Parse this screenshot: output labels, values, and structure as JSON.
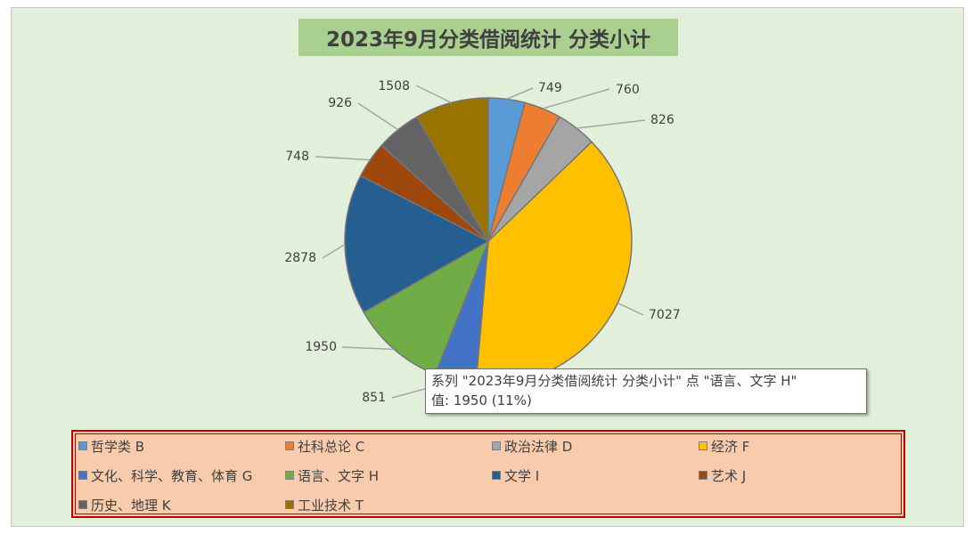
{
  "chart_data": {
    "type": "pie",
    "title": "2023年9月分类借阅统计 分类小计",
    "categories": [
      "哲学类 B",
      "社科总论 C",
      "政治法律 D",
      "经济 F",
      "文化、科学、教育、体育 G",
      "语言、文字 H",
      "文学 I",
      "艺术 J",
      "历史、地理 K",
      "工业技术 T"
    ],
    "pie_order": [
      "哲学类 B",
      "社科总论 C",
      "政治法律 D",
      "经济 F",
      "文学 I",
      "语言、文字 H",
      "文化、科学、教育、体育 G",
      "艺术 J",
      "历史、地理 K",
      "工业技术 T"
    ],
    "pie_values": [
      749,
      760,
      826,
      7027,
      851,
      1950,
      2878,
      748,
      926,
      1508
    ],
    "pie_colors": [
      "#5b9bd5",
      "#ed7d31",
      "#a5a5a5",
      "#ffc000",
      "#4472c4",
      "#70ad47",
      "#255e91",
      "#9e480e",
      "#636363",
      "#997300"
    ],
    "legend_colors": [
      "#5b9bd5",
      "#ed7d31",
      "#a5a5a5",
      "#ffc000",
      "#4472c4",
      "#70ad47",
      "#255e91",
      "#9e480e",
      "#636363",
      "#997300"
    ],
    "data_labels": [
      "749",
      "760",
      "826",
      "7027",
      "851",
      "1950",
      "2878",
      "748",
      "926",
      "1508"
    ],
    "legend_position": "bottom",
    "start_angle_deg": 0,
    "direction": "clockwise"
  },
  "tooltip": {
    "line1": "系列 \"2023年9月分类借阅统计 分类小计\" 点 \"语言、文字 H\"",
    "line2": "值: 1950 (11%)"
  }
}
